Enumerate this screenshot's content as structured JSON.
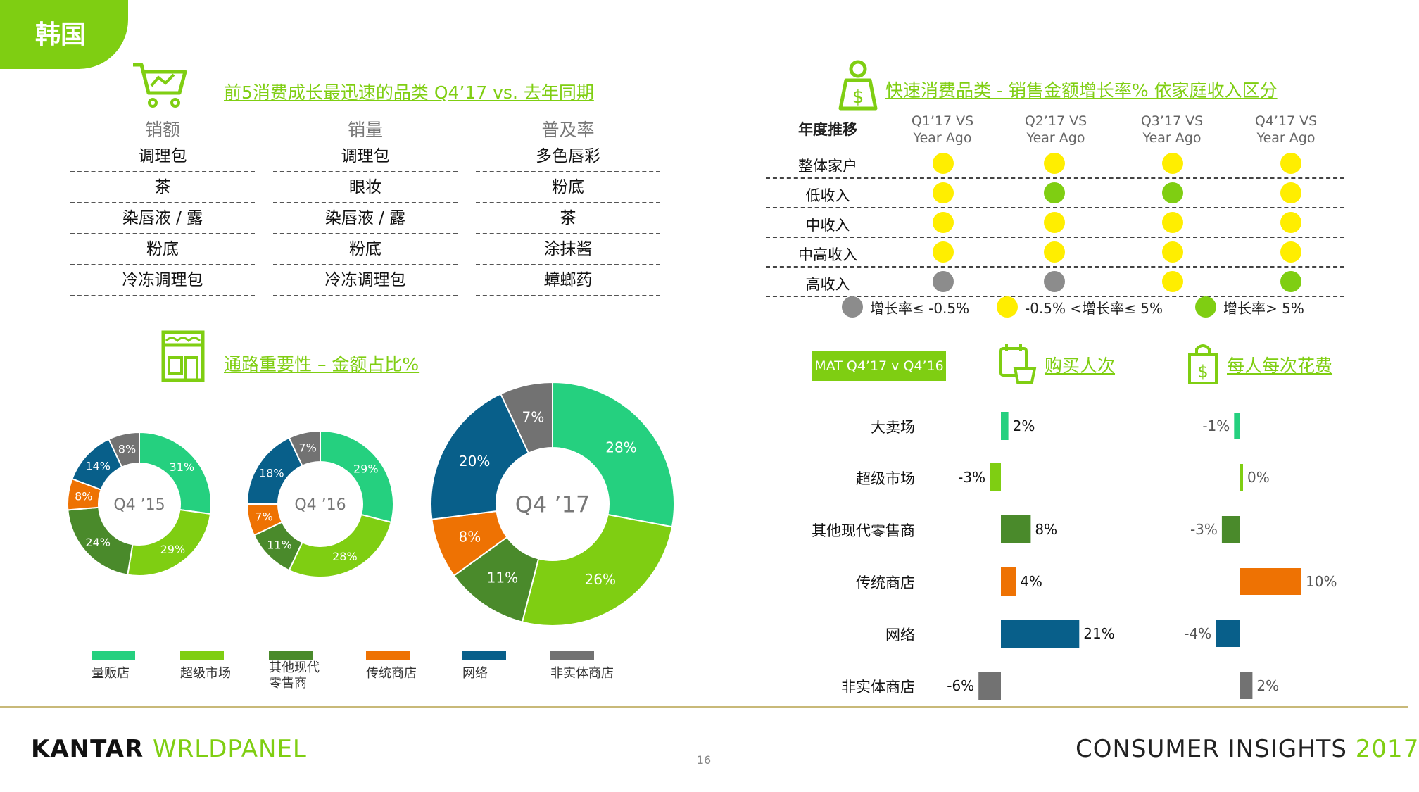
{
  "header": {
    "country": "韩国"
  },
  "top5": {
    "title": "前5消费成长最迅速的品类 Q4’17  vs.  去年同期",
    "columns": [
      {
        "head": "销额",
        "items": [
          "调理包",
          "茶",
          "染唇液 / 露",
          "粉底",
          "冷冻调理包"
        ]
      },
      {
        "head": "销量",
        "items": [
          "调理包",
          "眼妆",
          "染唇液 / 露",
          "粉底",
          "冷冻调理包"
        ]
      },
      {
        "head": "普及率",
        "items": [
          "多色唇彩",
          "粉底",
          "茶",
          "涂抹酱",
          "蟑螂药"
        ]
      }
    ]
  },
  "income": {
    "title": "快速消费品类 - 销售金额增长率% 依家庭收入区分",
    "row_head": "年度推移",
    "quarters": [
      {
        "l1": "Q1’17 VS",
        "l2": "Year Ago"
      },
      {
        "l1": "Q2’17 VS",
        "l2": "Year Ago"
      },
      {
        "l1": "Q3’17 VS",
        "l2": "Year Ago"
      },
      {
        "l1": "Q4’17 VS",
        "l2": "Year Ago"
      }
    ],
    "rows": [
      {
        "label": "整体家户",
        "dots": [
          "yellow",
          "yellow",
          "yellow",
          "yellow"
        ]
      },
      {
        "label": "低收入",
        "dots": [
          "yellow",
          "green",
          "green",
          "yellow"
        ]
      },
      {
        "label": "中收入",
        "dots": [
          "yellow",
          "yellow",
          "yellow",
          "yellow"
        ]
      },
      {
        "label": "中高收入",
        "dots": [
          "yellow",
          "yellow",
          "yellow",
          "yellow"
        ]
      },
      {
        "label": "高收入",
        "dots": [
          "grey",
          "grey",
          "yellow",
          "green"
        ]
      }
    ],
    "legend": [
      {
        "color": "grey",
        "label": "增长率≤ -0.5%"
      },
      {
        "color": "yellow",
        "label": "-0.5% <增长率≤  5%"
      },
      {
        "color": "green",
        "label": "增长率> 5%"
      }
    ],
    "colors": {
      "yellow": "#ffee00",
      "green": "#7fce12",
      "grey": "#8c8c8c"
    }
  },
  "channel": {
    "title": "通路重要性 – 金额占比%",
    "colors": [
      "#25d07f",
      "#7fce12",
      "#4a8a2b",
      "#ee7203",
      "#085f8a",
      "#727272"
    ],
    "legend": [
      "量贩店",
      "超级市场",
      "其他现代\n零售商",
      "传统商店",
      "网络",
      "非实体商店"
    ]
  },
  "mat": {
    "badge": "MAT Q4’17 v Q4’16",
    "h1": "购买人次",
    "h2": "每人每次花费"
  },
  "footer": {
    "brand1": "KANTAR ",
    "brand2": "W",
    "brand3": "RLDPANEL",
    "page": "16",
    "ci1": "CONSUMER INSIGHTS ",
    "ci2": "2017"
  },
  "chart_data": [
    {
      "type": "pie",
      "center_label": "Q4 ’15",
      "categories": [
        "量贩店",
        "超级市场",
        "其他现代零售商",
        "传统商店",
        "网络",
        "非实体商店"
      ],
      "values": [
        31,
        29,
        24,
        8,
        14,
        8
      ],
      "labels": [
        "31%",
        "29%",
        "24%",
        "8%",
        "14%",
        "8%"
      ]
    },
    {
      "type": "pie",
      "center_label": "Q4 ’16",
      "categories": [
        "量贩店",
        "超级市场",
        "其他现代零售商",
        "传统商店",
        "网络",
        "非实体商店"
      ],
      "values": [
        29,
        28,
        11,
        7,
        18,
        7
      ],
      "labels": [
        "29%",
        "28%",
        "11%",
        "7%",
        "18%",
        "7%"
      ]
    },
    {
      "type": "pie",
      "center_label": "Q4 ’17",
      "categories": [
        "量贩店",
        "超级市场",
        "其他现代零售商",
        "传统商店",
        "网络",
        "非实体商店"
      ],
      "values": [
        28,
        26,
        11,
        8,
        20,
        7
      ],
      "labels": [
        "28%",
        "26%",
        "11%",
        "8%",
        "20%",
        "7%"
      ]
    },
    {
      "type": "bar",
      "title": "购买人次",
      "categories": [
        "大卖场",
        "超级市场",
        "其他现代零售商",
        "传统商店",
        "网络",
        "非实体商店"
      ],
      "values": [
        2,
        -3,
        8,
        4,
        21,
        -6
      ],
      "labels": [
        "2%",
        "-3%",
        "8%",
        "4%",
        "21%",
        "-6%"
      ]
    },
    {
      "type": "bar",
      "title": "每人每次花费",
      "categories": [
        "大卖场",
        "超级市场",
        "其他现代零售商",
        "传统商店",
        "网络",
        "非实体商店"
      ],
      "values": [
        -1,
        0,
        -3,
        10,
        -4,
        2
      ],
      "labels": [
        "-1%",
        "0%",
        "-3%",
        "10%",
        "-4%",
        "2%"
      ]
    }
  ]
}
